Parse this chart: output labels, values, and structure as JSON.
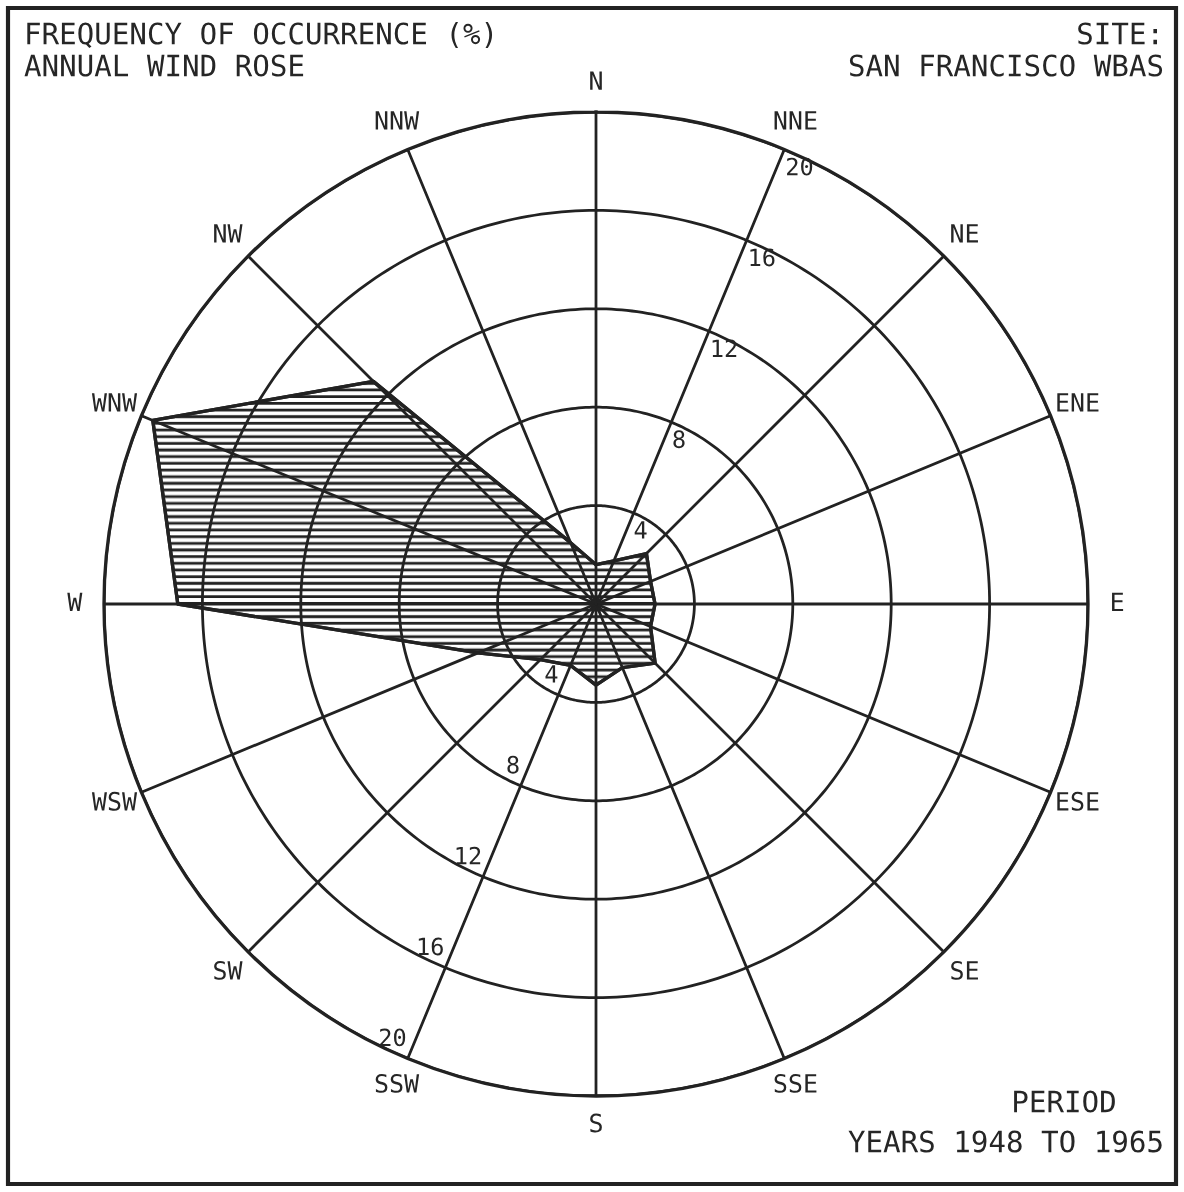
{
  "chart_data": {
    "type": "radar",
    "title": "FREQUENCY OF OCCURRENCE (%)",
    "subtitle": "ANNUAL WIND ROSE",
    "categories": [
      "N",
      "NNE",
      "NE",
      "ENE",
      "E",
      "ESE",
      "SE",
      "SSE",
      "S",
      "SSW",
      "SW",
      "WSW",
      "W",
      "WNW",
      "NW",
      "NNW"
    ],
    "series": [
      {
        "color": "#222222",
        "values": [
          1.6,
          1.9,
          2.9,
          2.4,
          2.4,
          2.4,
          3.4,
          2.8,
          3.3,
          2.7,
          3.2,
          5.2,
          17,
          19.5,
          12.8,
          2.7
        ]
      }
    ],
    "ylim": [
      0,
      20
    ],
    "yticks": [
      4,
      8,
      12,
      16,
      20
    ],
    "grid": true,
    "annotations": [
      "SITE:",
      "SAN FRANCISCO WBAS",
      "PERIOD",
      "YEARS 1948 TO 1965",
      "4",
      "8",
      "12",
      "16",
      "20"
    ]
  }
}
